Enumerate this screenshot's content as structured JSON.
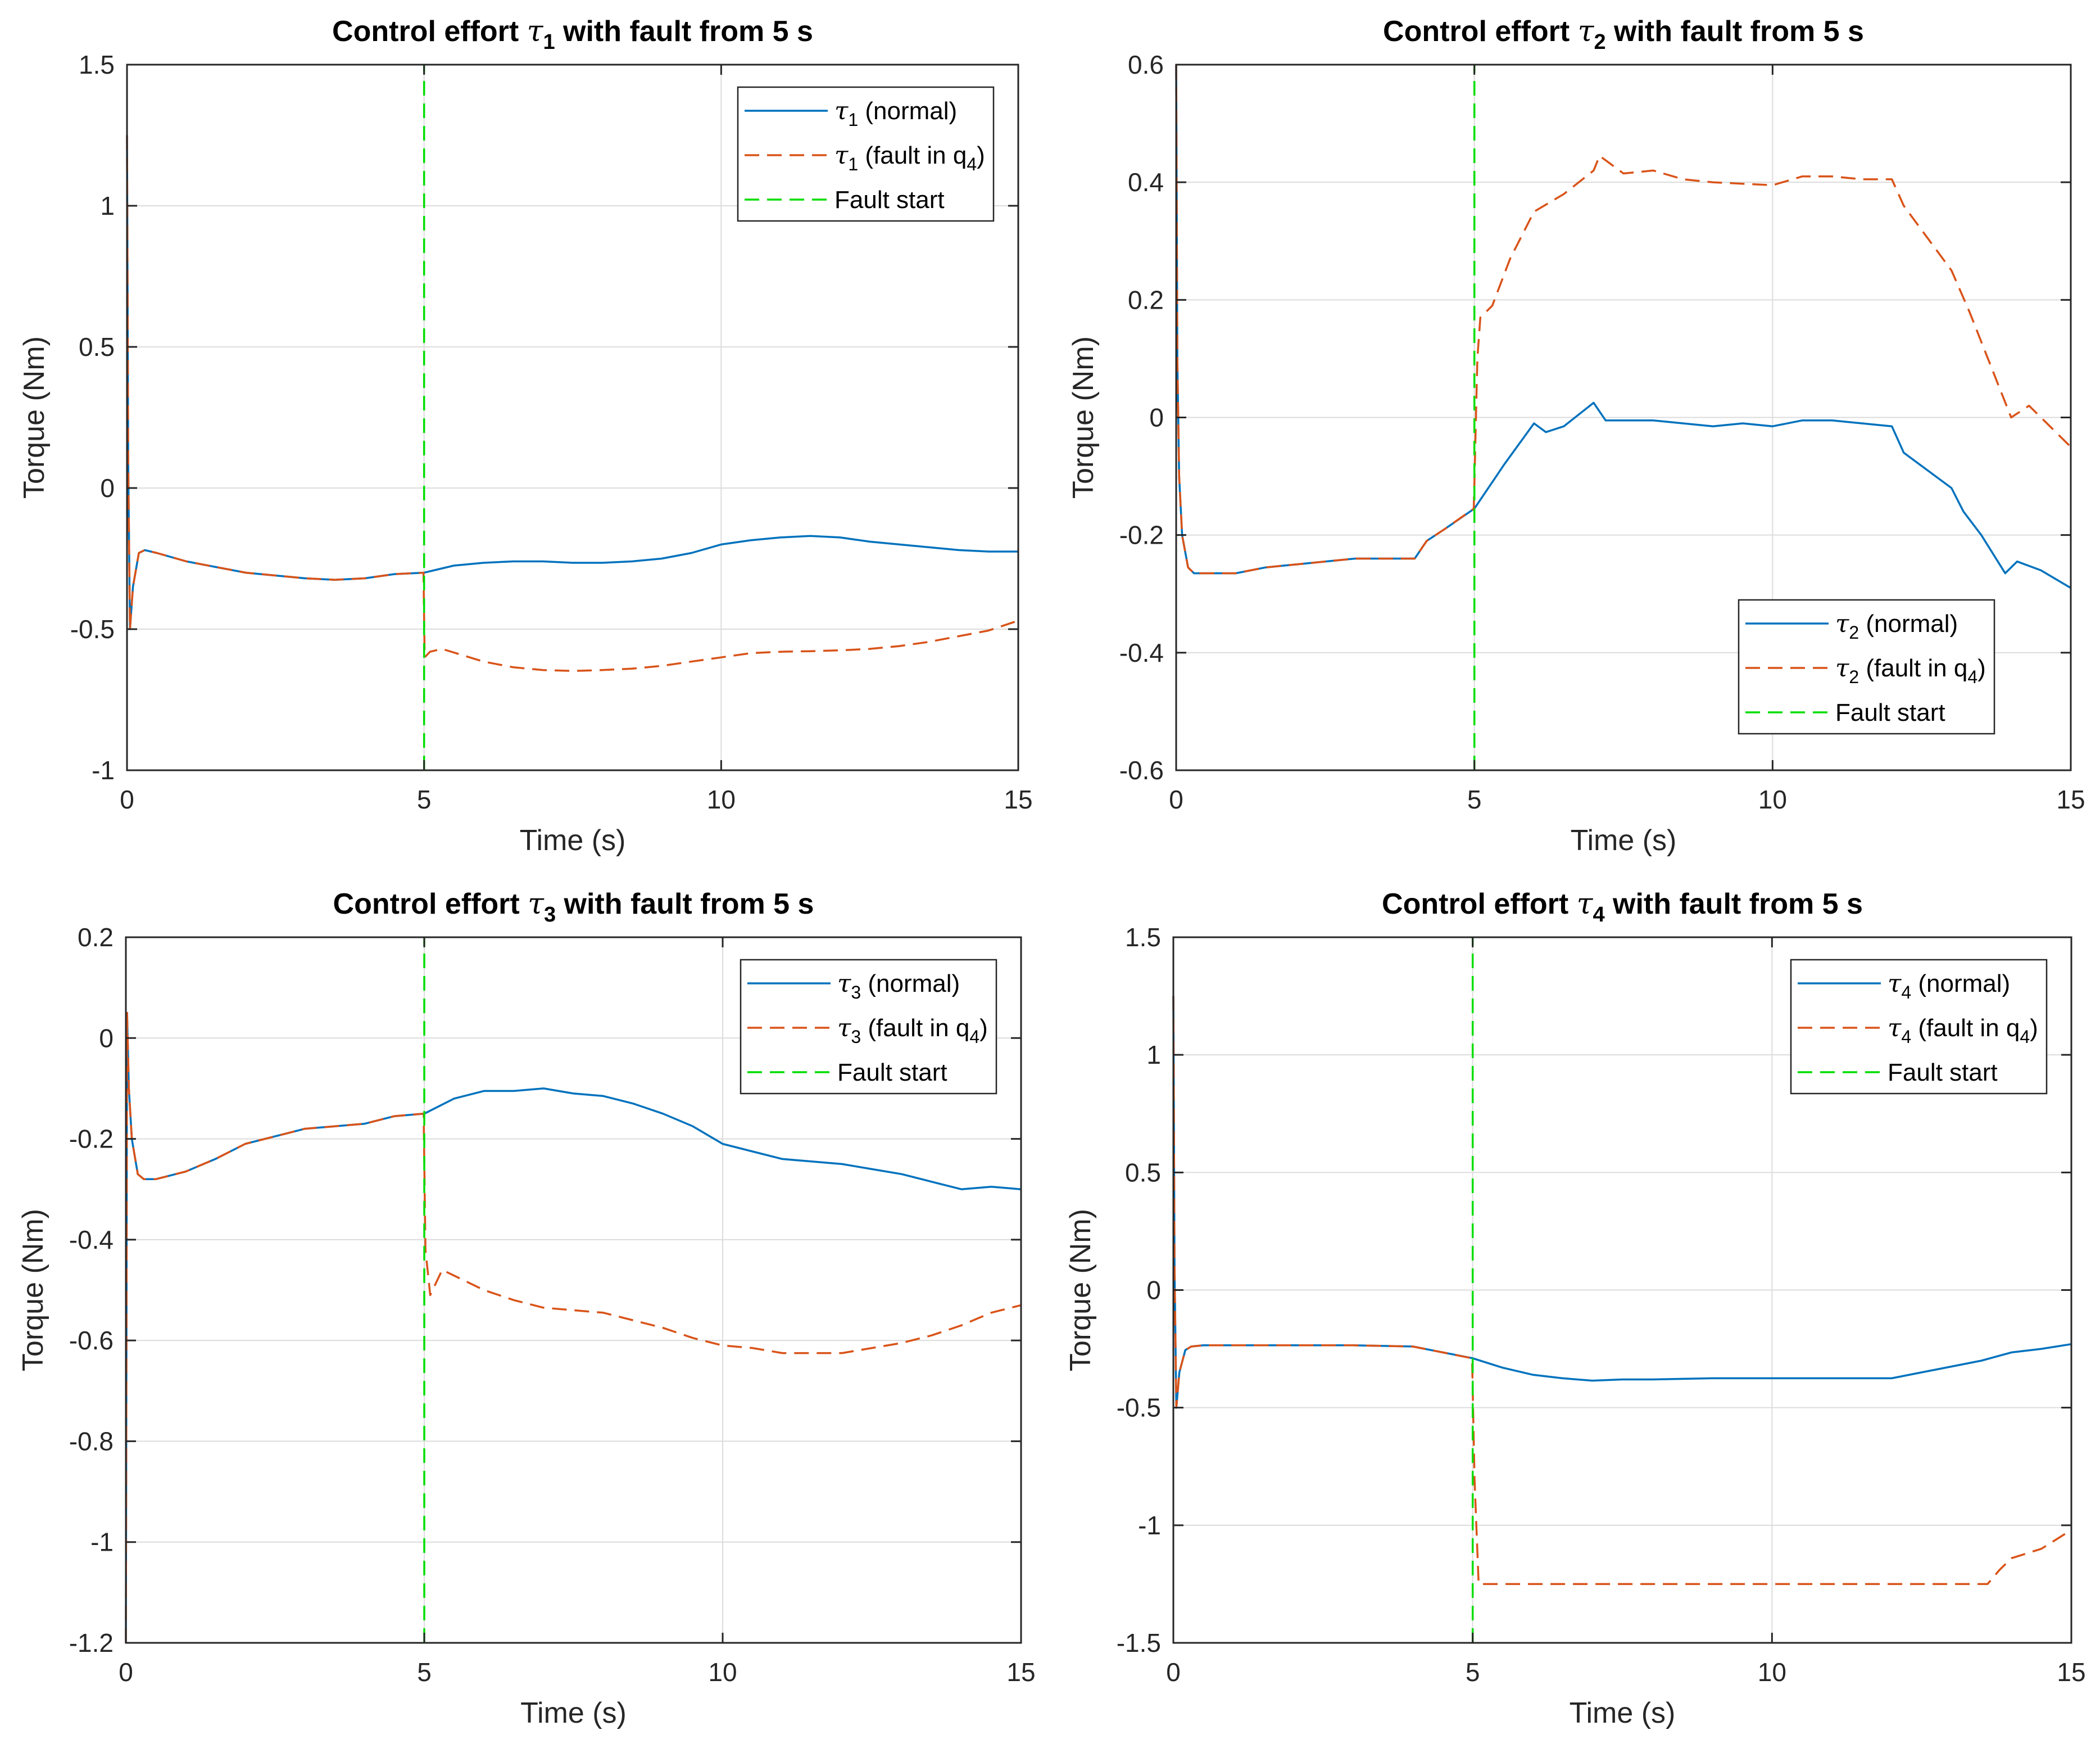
{
  "chart_data": [
    {
      "type": "line",
      "title": {
        "prefix": "Control effort ",
        "symbol": "τ",
        "sub": "1",
        "suffix": " with fault from 5 s"
      },
      "xlabel": "Time (s)",
      "ylabel": "Torque (Nm)",
      "xlim": [
        0,
        15
      ],
      "ylim": [
        -1,
        1.5
      ],
      "xticks": [
        "0",
        "5",
        "10",
        "15"
      ],
      "yticks": [
        "-1",
        "-0.5",
        "0",
        "0.5",
        "1",
        "1.5"
      ],
      "grid": true,
      "legend_position": "top-right",
      "fault_line_x": 5,
      "series": [
        {
          "symbol": "τ",
          "sub": "1",
          "label": " (normal)",
          "color": "#0072BD",
          "style": "solid",
          "x": [
            0,
            0.02,
            0.05,
            0.1,
            0.2,
            0.3,
            0.5,
            1,
            1.5,
            2,
            2.5,
            3,
            3.5,
            4,
            4.5,
            5,
            5.5,
            6,
            6.5,
            7,
            7.5,
            8,
            8.5,
            9,
            9.5,
            10,
            10.5,
            11,
            11.5,
            12,
            12.5,
            13,
            13.5,
            14,
            14.5,
            15
          ],
          "y": [
            1.25,
            0.1,
            -0.5,
            -0.35,
            -0.23,
            -0.22,
            -0.23,
            -0.26,
            -0.28,
            -0.3,
            -0.31,
            -0.32,
            -0.325,
            -0.32,
            -0.305,
            -0.3,
            -0.275,
            -0.265,
            -0.26,
            -0.26,
            -0.265,
            -0.265,
            -0.26,
            -0.25,
            -0.23,
            -0.2,
            -0.185,
            -0.175,
            -0.17,
            -0.175,
            -0.19,
            -0.2,
            -0.21,
            -0.22,
            -0.225,
            -0.225
          ]
        },
        {
          "symbol": "τ",
          "sub": "1",
          "label": " (fault in q",
          "label_sub": "4",
          "label_end": ")",
          "color": "#D95319",
          "style": "dashed",
          "x": [
            0,
            0.02,
            0.05,
            0.1,
            0.2,
            0.3,
            0.5,
            1,
            1.5,
            2,
            2.5,
            3,
            3.5,
            4,
            4.5,
            4.99,
            5.01,
            5.1,
            5.3,
            6,
            6.5,
            7,
            7.5,
            8,
            8.5,
            9,
            9.5,
            10,
            10.5,
            11,
            11.5,
            12,
            12.5,
            13,
            13.5,
            14,
            14.5,
            15
          ],
          "y": [
            1.25,
            0.1,
            -0.5,
            -0.35,
            -0.23,
            -0.22,
            -0.23,
            -0.26,
            -0.28,
            -0.3,
            -0.31,
            -0.32,
            -0.325,
            -0.32,
            -0.305,
            -0.3,
            -0.6,
            -0.58,
            -0.57,
            -0.615,
            -0.635,
            -0.645,
            -0.648,
            -0.645,
            -0.64,
            -0.63,
            -0.615,
            -0.6,
            -0.585,
            -0.58,
            -0.578,
            -0.575,
            -0.57,
            -0.56,
            -0.545,
            -0.525,
            -0.505,
            -0.47
          ]
        },
        {
          "label": "Fault start",
          "color": "#00DD00",
          "style": "dashed",
          "x": [
            5,
            5
          ],
          "y": [
            -1,
            1.5
          ]
        }
      ]
    },
    {
      "type": "line",
      "title": {
        "prefix": "Control effort ",
        "symbol": "τ",
        "sub": "2",
        "suffix": " with fault from 5 s"
      },
      "xlabel": "Time (s)",
      "ylabel": "Torque (Nm)",
      "xlim": [
        0,
        15
      ],
      "ylim": [
        -0.6,
        0.6
      ],
      "xticks": [
        "0",
        "5",
        "10",
        "15"
      ],
      "yticks": [
        "-0.6",
        "-0.4",
        "-0.2",
        "0",
        "0.2",
        "0.4",
        "0.6"
      ],
      "grid": true,
      "legend_position": "bottom-right",
      "fault_line_x": 5,
      "series": [
        {
          "symbol": "τ",
          "sub": "2",
          "label": " (normal)",
          "color": "#0072BD",
          "style": "solid",
          "x": [
            0,
            0.02,
            0.05,
            0.1,
            0.2,
            0.3,
            0.5,
            1,
            1.5,
            2,
            2.5,
            3,
            3.5,
            4,
            4.2,
            4.5,
            5,
            5.5,
            6,
            6.2,
            6.5,
            7,
            7.2,
            8,
            9,
            9.5,
            10,
            10.5,
            11,
            11.5,
            12,
            12.2,
            13,
            13.2,
            13.5,
            13.9,
            14.1,
            14.5,
            15
          ],
          "y": [
            0.6,
            0.1,
            -0.1,
            -0.2,
            -0.255,
            -0.265,
            -0.265,
            -0.265,
            -0.255,
            -0.25,
            -0.245,
            -0.24,
            -0.24,
            -0.24,
            -0.21,
            -0.19,
            -0.155,
            -0.08,
            -0.01,
            -0.025,
            -0.015,
            0.025,
            -0.005,
            -0.005,
            -0.015,
            -0.01,
            -0.015,
            -0.005,
            -0.005,
            -0.01,
            -0.015,
            -0.06,
            -0.12,
            -0.16,
            -0.2,
            -0.265,
            -0.245,
            -0.26,
            -0.29
          ]
        },
        {
          "symbol": "τ",
          "sub": "2",
          "label": " (fault in q",
          "label_sub": "4",
          "label_end": ")",
          "color": "#D95319",
          "style": "dashed",
          "x": [
            0,
            0.02,
            0.05,
            0.1,
            0.2,
            0.3,
            0.5,
            1,
            1.5,
            2,
            2.5,
            3,
            3.5,
            4,
            4.2,
            4.5,
            4.99,
            5.05,
            5.1,
            5.3,
            5.6,
            6,
            6.5,
            7,
            7.1,
            7.5,
            8,
            8.5,
            9,
            10,
            10.5,
            11,
            11.5,
            12,
            12.2,
            13,
            13.3,
            14,
            14.3,
            15
          ],
          "y": [
            0.6,
            0.1,
            -0.1,
            -0.2,
            -0.255,
            -0.265,
            -0.265,
            -0.265,
            -0.255,
            -0.25,
            -0.245,
            -0.24,
            -0.24,
            -0.24,
            -0.21,
            -0.19,
            -0.155,
            0.1,
            0.17,
            0.19,
            0.27,
            0.35,
            0.38,
            0.42,
            0.445,
            0.415,
            0.42,
            0.405,
            0.4,
            0.395,
            0.41,
            0.41,
            0.405,
            0.405,
            0.36,
            0.25,
            0.18,
            0.0,
            0.02,
            -0.05
          ]
        },
        {
          "label": "Fault start",
          "color": "#00DD00",
          "style": "dashed",
          "x": [
            5,
            5
          ],
          "y": [
            -0.6,
            0.6
          ]
        }
      ]
    },
    {
      "type": "line",
      "title": {
        "prefix": "Control effort ",
        "symbol": "τ",
        "sub": "3",
        "suffix": " with fault from 5 s"
      },
      "xlabel": "Time (s)",
      "ylabel": "Torque (Nm)",
      "xlim": [
        0,
        15
      ],
      "ylim": [
        -1.2,
        0.2
      ],
      "xticks": [
        "0",
        "5",
        "10",
        "15"
      ],
      "yticks": [
        "-1.2",
        "-1",
        "-0.8",
        "-0.6",
        "-0.4",
        "-0.2",
        "0",
        "0.2"
      ],
      "grid": true,
      "legend_position": "top-right",
      "fault_line_x": 5,
      "series": [
        {
          "symbol": "τ",
          "sub": "3",
          "label": " (normal)",
          "color": "#0072BD",
          "style": "solid",
          "x": [
            0,
            0.02,
            0.05,
            0.1,
            0.2,
            0.3,
            0.5,
            1,
            1.5,
            2,
            2.5,
            3,
            3.5,
            4,
            4.5,
            5,
            5.5,
            6,
            6.5,
            7,
            7.5,
            8,
            8.5,
            9,
            9.5,
            10,
            10.5,
            11,
            11.5,
            12,
            12.5,
            13,
            13.5,
            14,
            14.5,
            15
          ],
          "y": [
            -1.2,
            0.05,
            -0.1,
            -0.2,
            -0.27,
            -0.28,
            -0.28,
            -0.265,
            -0.24,
            -0.21,
            -0.195,
            -0.18,
            -0.175,
            -0.17,
            -0.155,
            -0.15,
            -0.12,
            -0.105,
            -0.105,
            -0.1,
            -0.11,
            -0.115,
            -0.13,
            -0.15,
            -0.175,
            -0.21,
            -0.225,
            -0.24,
            -0.245,
            -0.25,
            -0.26,
            -0.27,
            -0.285,
            -0.3,
            -0.295,
            -0.3
          ]
        },
        {
          "symbol": "τ",
          "sub": "3",
          "label": " (fault in q",
          "label_sub": "4",
          "label_end": ")",
          "color": "#D95319",
          "style": "dashed",
          "x": [
            0,
            0.02,
            0.05,
            0.1,
            0.2,
            0.3,
            0.5,
            1,
            1.5,
            2,
            2.5,
            3,
            3.5,
            4,
            4.5,
            4.99,
            5.02,
            5.1,
            5.3,
            6,
            6.5,
            7,
            7.5,
            8,
            8.5,
            9,
            9.5,
            10,
            10.5,
            11,
            11.5,
            12,
            12.5,
            13,
            13.5,
            14,
            14.5,
            15
          ],
          "y": [
            -1.2,
            0.05,
            -0.1,
            -0.2,
            -0.27,
            -0.28,
            -0.28,
            -0.265,
            -0.24,
            -0.21,
            -0.195,
            -0.18,
            -0.175,
            -0.17,
            -0.155,
            -0.15,
            -0.42,
            -0.51,
            -0.46,
            -0.5,
            -0.52,
            -0.535,
            -0.54,
            -0.545,
            -0.56,
            -0.575,
            -0.595,
            -0.61,
            -0.615,
            -0.625,
            -0.625,
            -0.625,
            -0.615,
            -0.605,
            -0.59,
            -0.57,
            -0.545,
            -0.53
          ]
        },
        {
          "label": "Fault start",
          "color": "#00DD00",
          "style": "dashed",
          "x": [
            5,
            5
          ],
          "y": [
            -1.2,
            0.2
          ]
        }
      ]
    },
    {
      "type": "line",
      "title": {
        "prefix": "Control effort ",
        "symbol": "τ",
        "sub": "4",
        "suffix": " with fault from 5 s"
      },
      "xlabel": "Time (s)",
      "ylabel": "Torque (Nm)",
      "xlim": [
        0,
        15
      ],
      "ylim": [
        -1.5,
        1.5
      ],
      "xticks": [
        "0",
        "5",
        "10",
        "15"
      ],
      "yticks": [
        "-1.5",
        "-1",
        "-0.5",
        "0",
        "0.5",
        "1",
        "1.5"
      ],
      "grid": true,
      "legend_position": "top-right",
      "fault_line_x": 5,
      "series": [
        {
          "symbol": "τ",
          "sub": "4",
          "label": " (normal)",
          "color": "#0072BD",
          "style": "solid",
          "x": [
            0,
            0.02,
            0.05,
            0.1,
            0.2,
            0.3,
            0.5,
            1,
            2,
            3,
            4,
            4.5,
            5,
            5.5,
            6,
            6.5,
            7,
            7.5,
            8,
            9,
            10,
            11,
            12,
            12.5,
            13,
            13.5,
            14,
            14.5,
            15
          ],
          "y": [
            1.25,
            0.1,
            -0.5,
            -0.35,
            -0.255,
            -0.24,
            -0.235,
            -0.235,
            -0.235,
            -0.235,
            -0.24,
            -0.265,
            -0.29,
            -0.33,
            -0.36,
            -0.375,
            -0.385,
            -0.38,
            -0.38,
            -0.375,
            -0.375,
            -0.375,
            -0.375,
            -0.35,
            -0.325,
            -0.3,
            -0.265,
            -0.25,
            -0.23
          ]
        },
        {
          "symbol": "τ",
          "sub": "4",
          "label": " (fault in q",
          "label_sub": "4",
          "label_end": ")",
          "color": "#D95319",
          "style": "dashed",
          "x": [
            0,
            0.02,
            0.05,
            0.1,
            0.2,
            0.3,
            0.5,
            1,
            2,
            3,
            4,
            4.5,
            4.99,
            5.03,
            5.1,
            6,
            7,
            8,
            9,
            10,
            11,
            12,
            13,
            13.6,
            13.8,
            14,
            14.5,
            15
          ],
          "y": [
            1.25,
            0.1,
            -0.5,
            -0.35,
            -0.255,
            -0.24,
            -0.235,
            -0.235,
            -0.235,
            -0.235,
            -0.24,
            -0.265,
            -0.29,
            -0.8,
            -1.25,
            -1.25,
            -1.25,
            -1.25,
            -1.25,
            -1.25,
            -1.25,
            -1.25,
            -1.25,
            -1.25,
            -1.19,
            -1.14,
            -1.1,
            -1.02
          ]
        },
        {
          "label": "Fault start",
          "color": "#00DD00",
          "style": "dashed",
          "x": [
            5,
            5
          ],
          "y": [
            -1.5,
            1.5
          ]
        }
      ]
    }
  ]
}
